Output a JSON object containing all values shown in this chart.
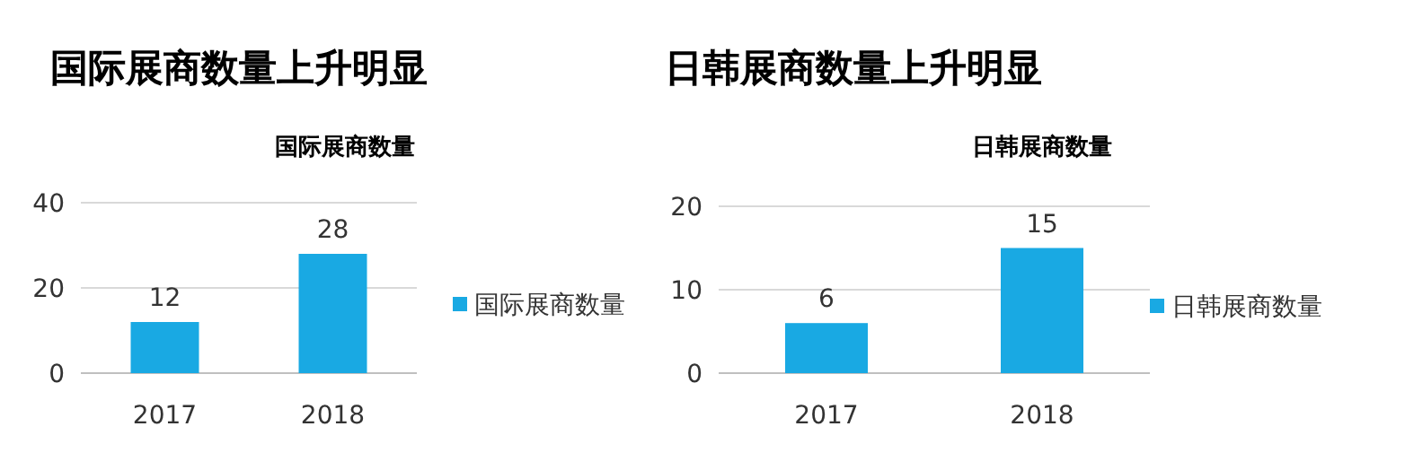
{
  "chart_data": [
    {
      "type": "bar",
      "title": "国际展商数量上升明显",
      "subtitle": "国际展商数量",
      "categories": [
        "2017",
        "2018"
      ],
      "series": [
        {
          "name": "国际展商数量",
          "color": "#19a9e3",
          "values": [
            12,
            28
          ]
        }
      ],
      "ylim": [
        0,
        40
      ],
      "yticks": [
        0,
        20,
        40
      ],
      "grid": "y",
      "legend": "right",
      "data_labels": true
    },
    {
      "type": "bar",
      "title": "日韩展商数量上升明显",
      "subtitle": "日韩展商数量",
      "categories": [
        "2017",
        "2018"
      ],
      "series": [
        {
          "name": "日韩展商数量",
          "color": "#19a9e3",
          "values": [
            6,
            15
          ]
        }
      ],
      "ylim": [
        0,
        20
      ],
      "yticks": [
        0,
        10,
        20
      ],
      "grid": "y",
      "legend": "right",
      "data_labels": true
    }
  ]
}
